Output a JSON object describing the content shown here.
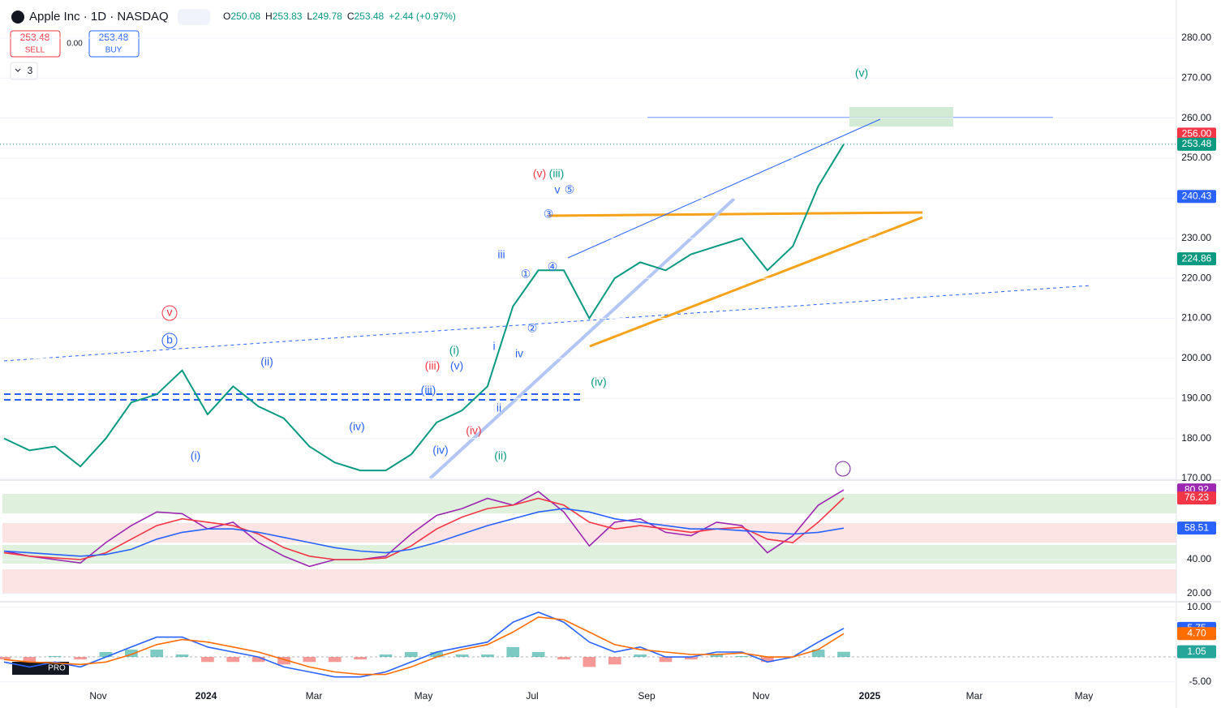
{
  "header": {
    "symbol": "Apple Inc · 1D · NASDAQ",
    "ohlc": [
      {
        "label": "O",
        "value": 250.08
      },
      {
        "label": "H",
        "value": 253.83
      },
      {
        "label": "L",
        "value": 249.78
      },
      {
        "label": "C",
        "value": 253.48
      }
    ],
    "change": "+2.44 (+0.97%)"
  },
  "trade": {
    "sell_price": 253.48,
    "sell": "SELL",
    "spread": {
      "value": 0,
      "label": "0.00"
    },
    "buy_price": 253.48,
    "buy": "BUY"
  },
  "indicators_count": 3,
  "logo_badge": "PRO",
  "time_axis": [
    "Nov",
    "2024",
    "Mar",
    "May",
    "Jul",
    "Sep",
    "Nov",
    "2025",
    "Mar",
    "May"
  ],
  "wave_labels": [
    "(v)",
    "(v)",
    "(iii)",
    "v",
    "⑤",
    "iii",
    "i",
    "iv",
    "ii",
    "(i)",
    "(v)",
    "(iii)",
    "(iii)",
    "(iv)",
    "(iv)",
    "(iv)",
    "(ii)",
    "(ii)",
    "(i)",
    "(iv)",
    "v",
    "b",
    "③",
    "①",
    "④",
    "②"
  ],
  "chart_data": [
    {
      "type": "line",
      "ylim": [
        170,
        289.5
      ],
      "yticks": [
        {
          "value": 170,
          "label": "170.00"
        },
        {
          "value": 180,
          "label": "180.00"
        },
        {
          "value": 190,
          "label": "190.00"
        },
        {
          "value": 200,
          "label": "200.00"
        },
        {
          "value": 210,
          "label": "210.00"
        },
        {
          "value": 220,
          "label": "220.00"
        },
        {
          "value": 230,
          "label": "230.00"
        },
        {
          "value": 240,
          "label": "240.00"
        },
        {
          "value": 250,
          "label": "250.00"
        },
        {
          "value": 260,
          "label": "260.00"
        },
        {
          "value": 270,
          "label": "270.00"
        },
        {
          "value": 280,
          "label": "280.00"
        }
      ],
      "series": [
        {
          "color": "#089981",
          "values": [
            180,
            177,
            178,
            173,
            180,
            189,
            191,
            197,
            186,
            193,
            188,
            185,
            178,
            174,
            172,
            172,
            176,
            184,
            187,
            193,
            213,
            222,
            222,
            210,
            220,
            224,
            222,
            226,
            228,
            230,
            222,
            228,
            243,
            253.48
          ]
        }
      ],
      "badges": [
        {
          "value": 256,
          "label": "256.00",
          "color": "#f23645"
        },
        {
          "value": 253.48,
          "label": "253.48",
          "color": "#089981"
        },
        {
          "value": 240.43,
          "label": "240.43",
          "color": "#2962ff"
        },
        {
          "value": 224.86,
          "label": "224.86",
          "color": "#089981"
        }
      ]
    },
    {
      "type": "line",
      "ylim": [
        16.2,
        86.7
      ],
      "yticks": [
        {
          "value": 20,
          "label": "20.00"
        },
        {
          "value": 40,
          "label": "40.00"
        }
      ],
      "series": [
        {
          "color": "#9c27b0",
          "values": [
            45,
            42,
            40,
            38,
            50,
            60,
            68,
            67,
            58,
            62,
            50,
            42,
            36,
            40,
            40,
            42,
            55,
            66,
            70,
            76,
            72,
            80,
            68,
            48,
            62,
            64,
            56,
            54,
            62,
            60,
            44,
            54,
            72,
            80.92
          ]
        },
        {
          "color": "#f23645",
          "values": [
            44,
            42,
            41,
            40,
            44,
            52,
            60,
            64,
            62,
            60,
            55,
            47,
            42,
            40,
            40,
            41,
            48,
            58,
            65,
            70,
            72,
            76,
            72,
            62,
            58,
            60,
            58,
            56,
            58,
            59,
            52,
            50,
            62,
            76.23
          ]
        },
        {
          "color": "#2962ff",
          "values": [
            45,
            44,
            43,
            42,
            43,
            46,
            52,
            56,
            58,
            58,
            56,
            53,
            50,
            47,
            45,
            44,
            46,
            50,
            55,
            60,
            64,
            68,
            70,
            68,
            64,
            62,
            60,
            58,
            58,
            57,
            56,
            55,
            56,
            58.51
          ]
        }
      ],
      "badges": [
        {
          "value": 80.92,
          "label": "80.92",
          "color": "#9c27b0"
        },
        {
          "value": 76.23,
          "label": "76.23",
          "color": "#f23645"
        },
        {
          "value": 58.51,
          "label": "58.51",
          "color": "#2962ff"
        }
      ]
    },
    {
      "type": "macd",
      "ylim": [
        -6.5,
        11.1
      ],
      "yticks": [
        {
          "value": 10,
          "label": "10.00"
        },
        {
          "value": -5,
          "label": "-5.00"
        }
      ],
      "series": [
        {
          "color": "#2962ff",
          "values": [
            -1,
            -2,
            -1,
            -2,
            0,
            2,
            4,
            4,
            2,
            1,
            0,
            -2,
            -3,
            -4,
            -4,
            -3,
            -1,
            1,
            2,
            3,
            7,
            9,
            7,
            3,
            1,
            2,
            0,
            0,
            1,
            1,
            -1,
            0,
            3,
            5.75
          ]
        },
        {
          "color": "#ff6d00",
          "values": [
            -0.5,
            -1,
            -1.2,
            -1.5,
            -1,
            0.5,
            2.5,
            3.5,
            3,
            2,
            1,
            -0.5,
            -2,
            -3,
            -3.5,
            -3.5,
            -2,
            0,
            1.5,
            2.5,
            5,
            8,
            7.5,
            5,
            2.5,
            1.5,
            1,
            0.5,
            0.5,
            0.8,
            0,
            0,
            1.5,
            4.7
          ]
        }
      ],
      "histogram": {
        "color": "#26a69a",
        "negative_color": "#ef5350",
        "values": [
          -0.5,
          -1,
          0.2,
          -0.5,
          1,
          1.5,
          1.5,
          0.5,
          -1,
          -1,
          -1,
          -1.5,
          -1,
          -1,
          -0.5,
          0.5,
          1,
          1,
          0.5,
          0.5,
          2,
          1,
          -0.5,
          -2,
          -1.5,
          0.5,
          -1,
          -0.5,
          0.5,
          0.2,
          -1,
          0,
          1.5,
          1.05
        ]
      },
      "badges": [
        {
          "value": 5.75,
          "label": "5.75",
          "color": "#2962ff"
        },
        {
          "value": 4.7,
          "label": "4.70",
          "color": "#ff6d00"
        },
        {
          "value": 1.05,
          "label": "1.05",
          "color": "#26a69a"
        }
      ]
    }
  ]
}
